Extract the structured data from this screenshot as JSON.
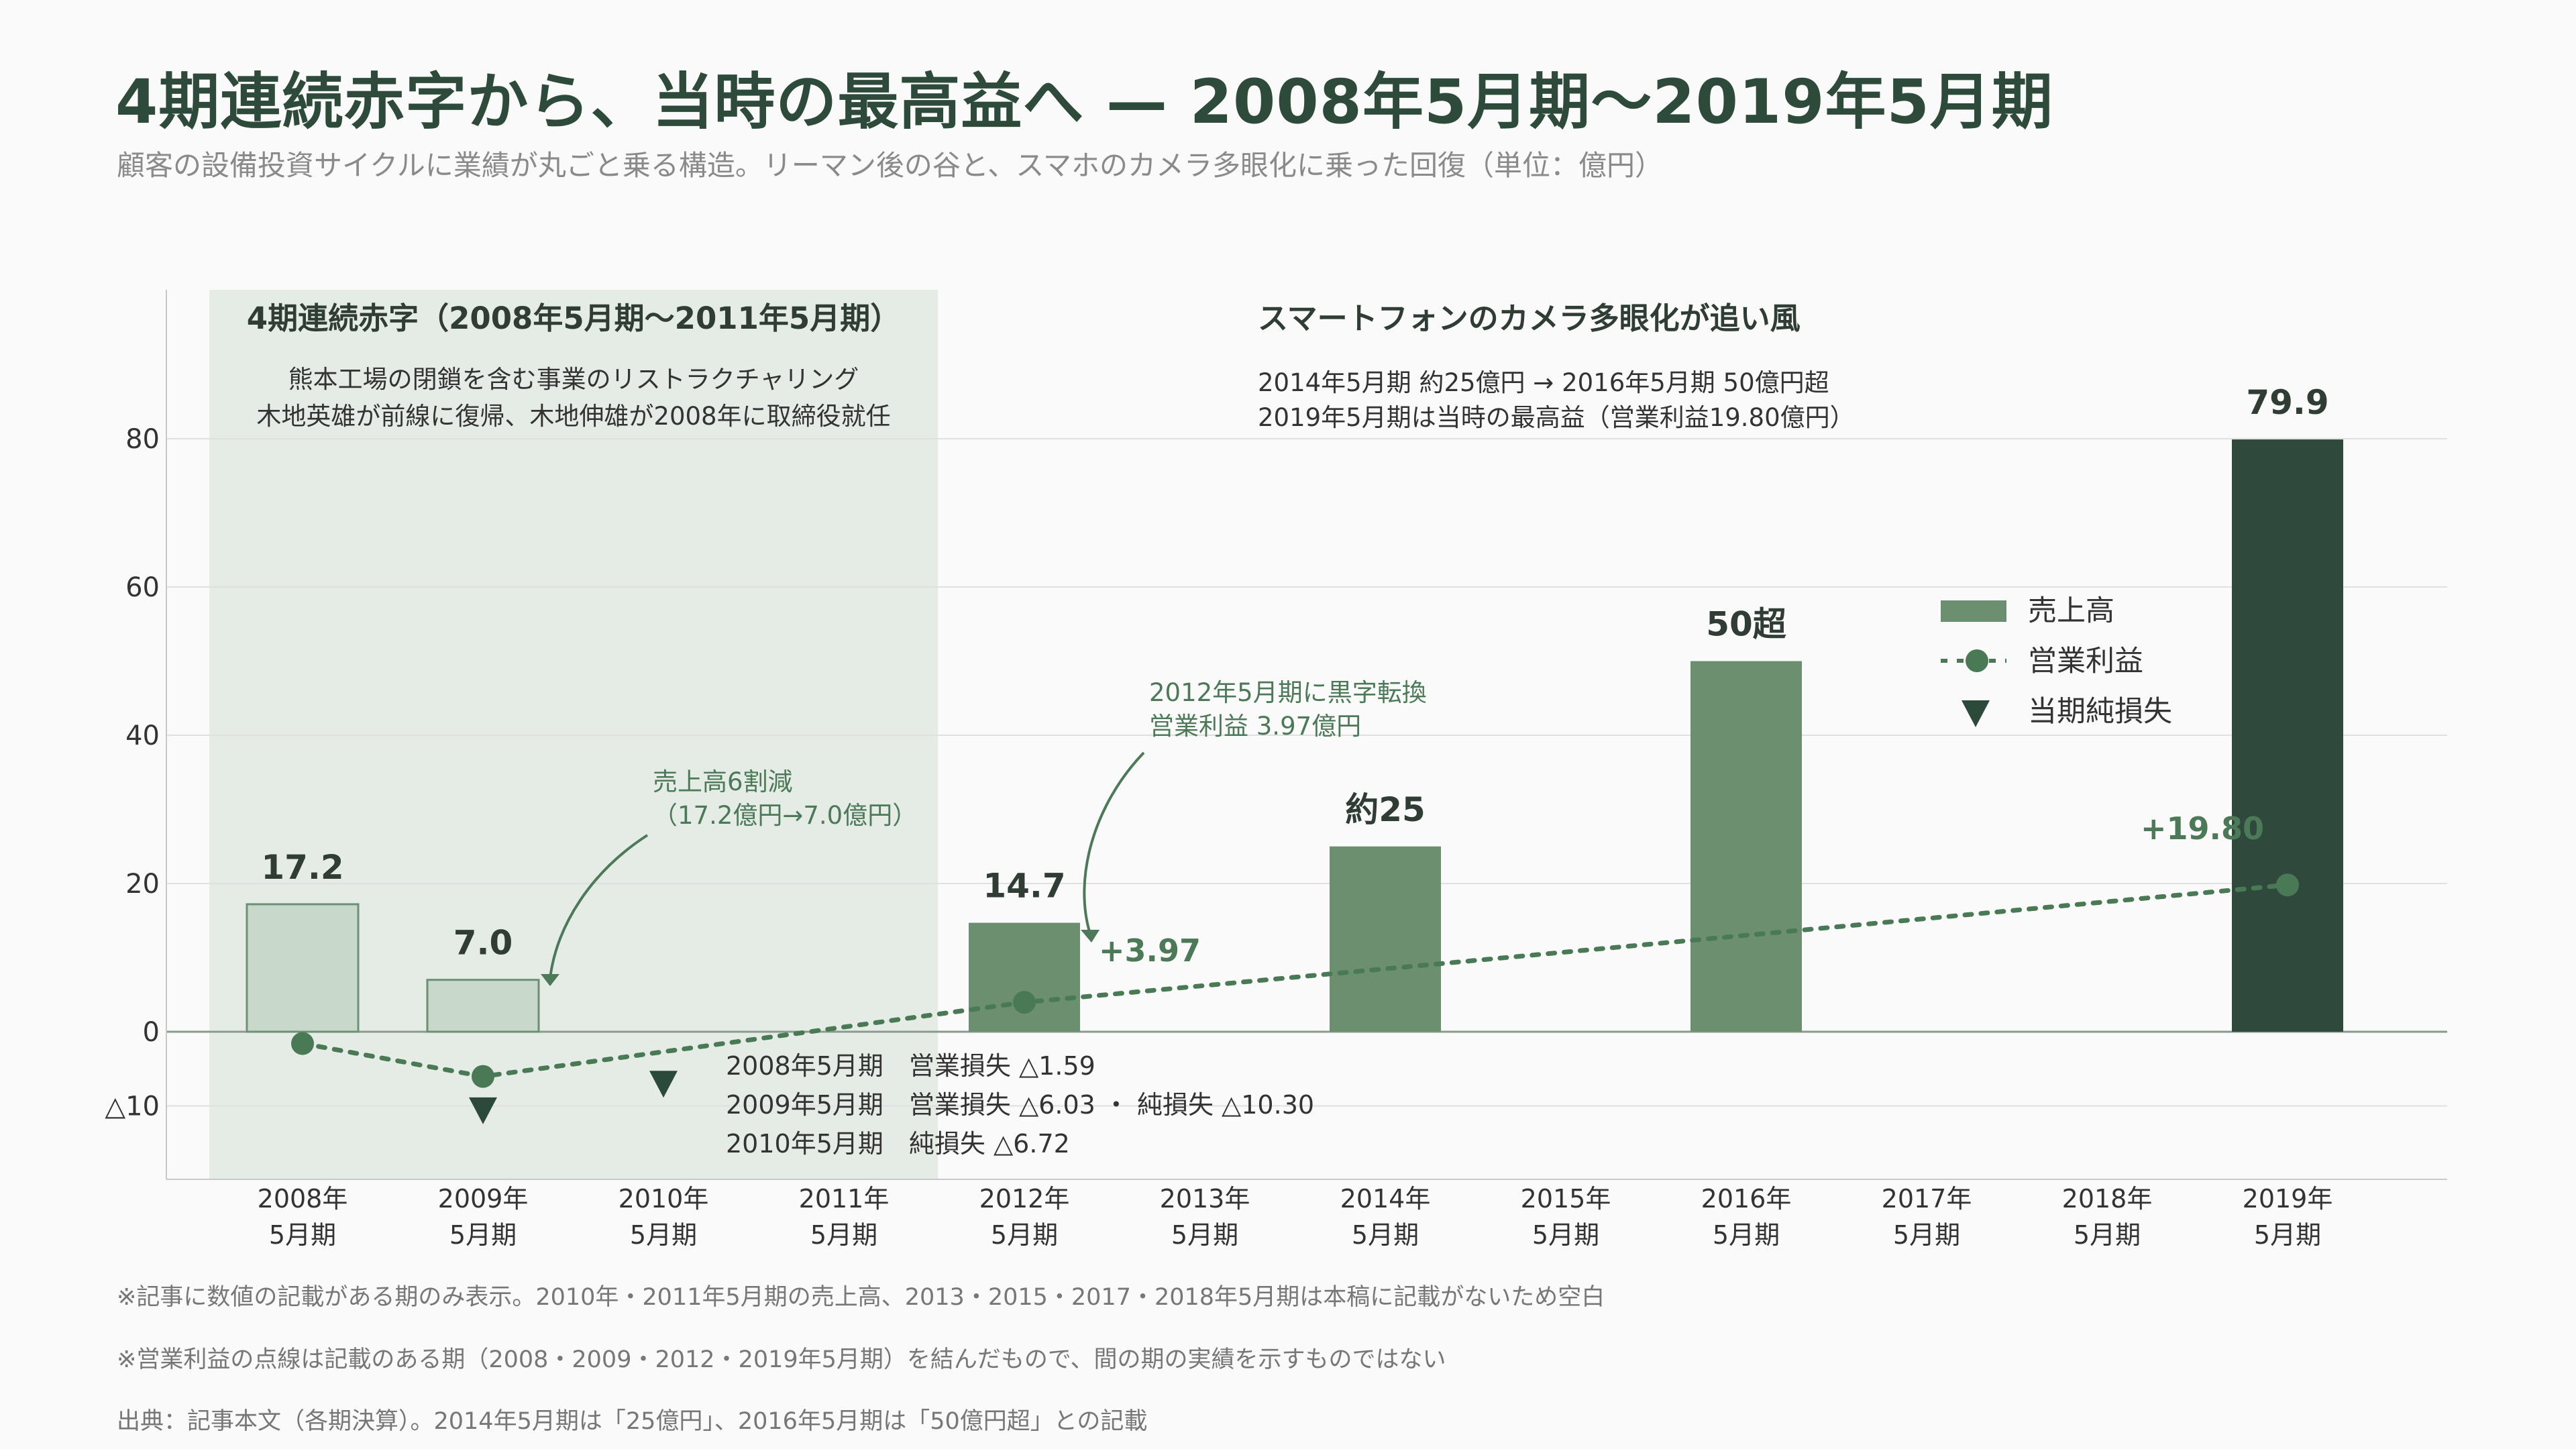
{
  "header": {
    "title": "4期連続赤字から、当時の最高益へ — 2008年5月期〜2019年5月期",
    "subtitle": "顧客の設備投資サイクルに業績が丸ごと乗る構造。リーマン後の谷と、スマホのカメラ多眼化に乗った回復（単位：億円）"
  },
  "footnotes": [
    "※記事に数値の記載がある期のみ表示。2010年・2011年5月期の売上高、2013・2015・2017・2018年5月期は本稿に記載がないため空白",
    "※営業利益の点線は記載のある期（2008・2009・2012・2019年5月期）を結んだもので、間の期の実績を示すものではない",
    "出典：記事本文（各期決算）。2014年5月期は「25億円」、2016年5月期は「50億円超」との記載"
  ],
  "chart_data": {
    "type": "bar",
    "categories": [
      [
        "2008年",
        "5月期"
      ],
      [
        "2009年",
        "5月期"
      ],
      [
        "2010年",
        "5月期"
      ],
      [
        "2011年",
        "5月期"
      ],
      [
        "2012年",
        "5月期"
      ],
      [
        "2013年",
        "5月期"
      ],
      [
        "2014年",
        "5月期"
      ],
      [
        "2015年",
        "5月期"
      ],
      [
        "2016年",
        "5月期"
      ],
      [
        "2017年",
        "5月期"
      ],
      [
        "2018年",
        "5月期"
      ],
      [
        "2019年",
        "5月期"
      ]
    ],
    "ylim": [
      -20,
      100
    ],
    "yticks": [
      {
        "value": 80,
        "label": "80"
      },
      {
        "value": 60,
        "label": "60"
      },
      {
        "value": 40,
        "label": "40"
      },
      {
        "value": 20,
        "label": "20"
      },
      {
        "value": 0,
        "label": "0"
      },
      {
        "value": -10,
        "label": "△10"
      }
    ],
    "grid": true,
    "legend_position": "right",
    "legend": [
      {
        "label": "売上高",
        "kind": "bar"
      },
      {
        "label": "営業利益",
        "kind": "line-dot"
      },
      {
        "label": "当期純損失",
        "kind": "triangle"
      }
    ],
    "series": [
      {
        "name": "売上高",
        "kind": "bar",
        "values": [
          17.2,
          7.0,
          null,
          null,
          14.7,
          null,
          25,
          null,
          50,
          null,
          null,
          79.9
        ],
        "labels": [
          "17.2",
          "7.0",
          "",
          "",
          "14.7",
          "",
          "約25",
          "",
          "50超",
          "",
          "",
          "79.9"
        ],
        "styles": [
          "light",
          "light",
          "",
          "",
          "mid",
          "",
          "mid",
          "",
          "mid",
          "",
          "",
          "dark"
        ]
      },
      {
        "name": "営業利益",
        "kind": "dotted-line",
        "values": [
          -1.59,
          -6.03,
          null,
          null,
          3.97,
          null,
          null,
          null,
          null,
          null,
          null,
          19.8
        ],
        "labels": [
          "",
          "",
          "",
          "",
          "+3.97",
          "",
          "",
          "",
          "",
          "",
          "",
          "+19.80"
        ]
      },
      {
        "name": "当期純損失",
        "kind": "triangle",
        "values": [
          null,
          -10.3,
          -6.72,
          null,
          null,
          null,
          null,
          null,
          null,
          null,
          null,
          null
        ]
      }
    ],
    "shaded_region": {
      "from_index": 0,
      "to_index": 3,
      "title": "4期連続赤字（2008年5月期〜2011年5月期）",
      "lines": [
        "熊本工場の閉鎖を含む事業のリストラクチャリング",
        "木地英雄が前線に復帰、木地伸雄が2008年に取締役就任"
      ]
    },
    "right_block": {
      "title": "スマートフォンのカメラ多眼化が追い風",
      "lines": [
        "2014年5月期 約25億円 → 2016年5月期 50億円超",
        "2019年5月期は当時の最高益（営業利益19.80億円）"
      ]
    },
    "annotations": [
      {
        "id": "sales-drop",
        "lines": [
          "売上高6割減",
          "（17.2億円→7.0億円）"
        ]
      },
      {
        "id": "turnaround",
        "lines": [
          "2012年5月期に黒字転換",
          "営業利益 3.97億円"
        ]
      },
      {
        "id": "losses",
        "lines": [
          "2008年5月期　営業損失 △1.59",
          "2009年5月期　営業損失 △6.03 ・ 純損失 △10.30",
          "2010年5月期　純損失 △6.72"
        ]
      }
    ],
    "colors": {
      "bar_light": "#c8d9cb",
      "bar_light_stroke": "#6d8f73",
      "bar_mid": "#6b8f6f",
      "bar_dark": "#2f4a3c",
      "line": "#4a7a55",
      "triangle": "#2b4a3a",
      "shade": "#e5ece6",
      "grid": "#e0e0e0",
      "text_dark": "#2f3d34",
      "annotation": "#4c7a58"
    }
  }
}
